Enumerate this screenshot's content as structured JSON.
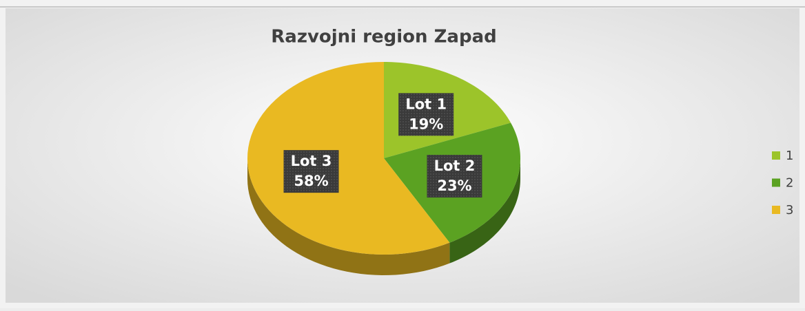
{
  "chart_data": {
    "type": "pie",
    "title": "Razvojni region Zapad",
    "categories": [
      "1",
      "2",
      "3"
    ],
    "label_names": [
      "Lot 1",
      "Lot 2",
      "Lot 3"
    ],
    "values": [
      19,
      23,
      58
    ],
    "value_labels": [
      "19%",
      "23%",
      "58%"
    ],
    "colors": [
      "#9cc42a",
      "#5ba222",
      "#e9b922"
    ],
    "legend": "right"
  }
}
